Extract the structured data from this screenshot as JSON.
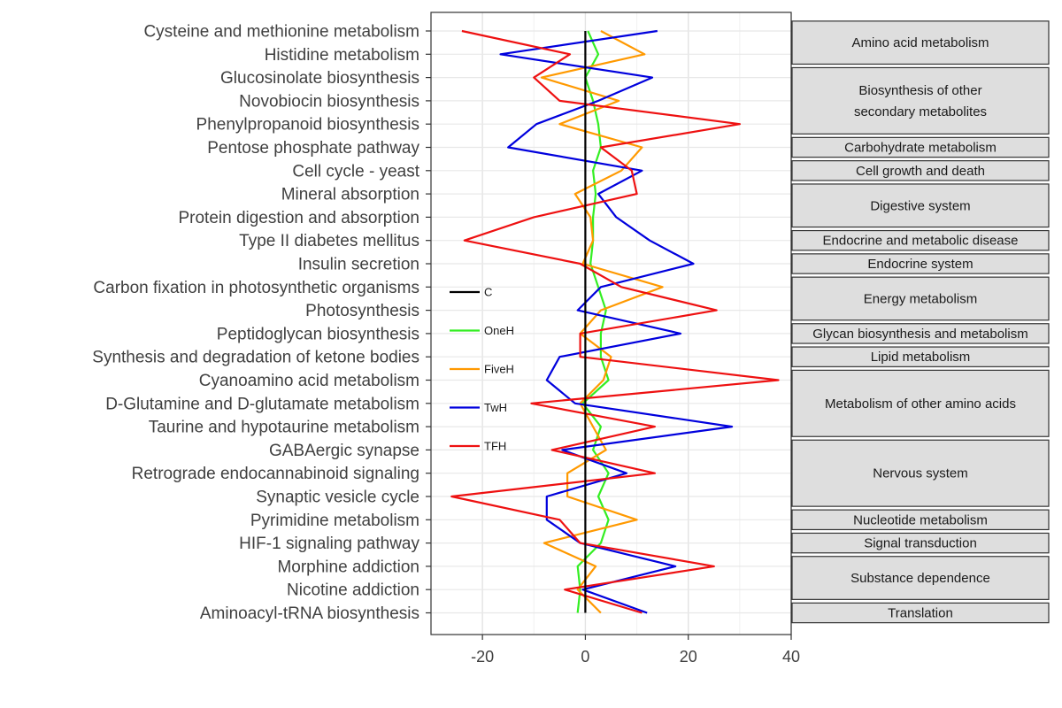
{
  "chart_data": {
    "type": "line",
    "pathways": [
      "Cysteine and methionine metabolism",
      "Histidine metabolism",
      "Glucosinolate biosynthesis",
      "Novobiocin biosynthesis",
      "Phenylpropanoid biosynthesis",
      "Pentose phosphate pathway",
      "Cell cycle - yeast",
      "Mineral absorption",
      "Protein digestion and absorption",
      "Type II diabetes mellitus",
      "Insulin secretion",
      "Carbon fixation in photosynthetic organisms",
      "Photosynthesis",
      "Peptidoglycan biosynthesis",
      "Synthesis and degradation of ketone bodies",
      "Cyanoamino acid metabolism",
      "D-Glutamine and D-glutamate metabolism",
      "Taurine and hypotaurine metabolism",
      "GABAergic synapse",
      "Retrograde endocannabinoid signaling",
      "Synaptic vesicle cycle",
      "Pyrimidine metabolism",
      "HIF-1 signaling pathway",
      "Morphine addiction",
      "Nicotine addiction",
      "Aminoacyl-tRNA biosynthesis"
    ],
    "xlim": [
      -30,
      40
    ],
    "xticks": [
      -20,
      0,
      20,
      40
    ],
    "grid": true,
    "legend_position": "inside-left",
    "series": [
      {
        "name": "C",
        "color": "#000000",
        "values": [
          0,
          0,
          0,
          0,
          0,
          0,
          0,
          0,
          0,
          0,
          0,
          0,
          0,
          0,
          0,
          0,
          0,
          0,
          0,
          0,
          0,
          0,
          0,
          0,
          0,
          0
        ]
      },
      {
        "name": "OneH",
        "color": "#33ee22",
        "values": [
          0.5,
          2.5,
          0,
          1.5,
          2.5,
          3,
          1.5,
          2,
          1.5,
          1.5,
          1,
          2.5,
          4,
          3,
          3,
          4.5,
          -0.5,
          3,
          1.5,
          4.5,
          2.5,
          4.5,
          3,
          -1.5,
          -1,
          -1.5
        ]
      },
      {
        "name": "FiveH",
        "color": "#ff9900",
        "values": [
          3,
          11.5,
          -8.5,
          6.5,
          -5,
          11,
          7,
          -2,
          1,
          1.5,
          -0.5,
          15,
          3,
          -1,
          5,
          3.5,
          -1,
          1.5,
          4,
          -3.5,
          -3.5,
          10,
          -8,
          2,
          -1.5,
          3
        ]
      },
      {
        "name": "TwH",
        "color": "#0000dd",
        "values": [
          14,
          -16.5,
          13,
          2.5,
          -9.5,
          -15,
          11,
          2.5,
          6,
          12.5,
          21,
          3,
          -1.5,
          18.5,
          -5,
          -7.5,
          -2,
          28.5,
          -4.5,
          8,
          -7.5,
          -7.5,
          -1,
          17.5,
          -0.5,
          12
        ]
      },
      {
        "name": "TFH",
        "color": "#ee1111",
        "values": [
          -24,
          -3,
          -10,
          -5,
          30,
          3,
          9,
          10,
          -10,
          -23.5,
          -1,
          7,
          25.5,
          -1,
          -1,
          37.5,
          -10.5,
          13.5,
          -6.5,
          13.5,
          -26,
          -5,
          -1,
          25,
          -4,
          11
        ]
      }
    ],
    "groups": [
      {
        "label": "Amino acid metabolism",
        "start": 0,
        "end": 1
      },
      {
        "label": "Biosynthesis of other secondary metabolites",
        "start": 2,
        "end": 4
      },
      {
        "label": "Carbohydrate metabolism",
        "start": 5,
        "end": 5
      },
      {
        "label": "Cell growth and death",
        "start": 6,
        "end": 6
      },
      {
        "label": "Digestive system",
        "start": 7,
        "end": 8
      },
      {
        "label": "Endocrine and metabolic disease",
        "start": 9,
        "end": 9
      },
      {
        "label": "Endocrine system",
        "start": 10,
        "end": 10
      },
      {
        "label": "Energy metabolism",
        "start": 11,
        "end": 12
      },
      {
        "label": "Glycan biosynthesis and metabolism",
        "start": 13,
        "end": 13
      },
      {
        "label": "Lipid metabolism",
        "start": 14,
        "end": 14
      },
      {
        "label": "Metabolism of other amino acids",
        "start": 15,
        "end": 17
      },
      {
        "label": "Nervous system",
        "start": 18,
        "end": 20
      },
      {
        "label": "Nucleotide metabolism",
        "start": 21,
        "end": 21
      },
      {
        "label": "Signal transduction",
        "start": 22,
        "end": 22
      },
      {
        "label": "Substance dependence",
        "start": 23,
        "end": 24
      },
      {
        "label": "Translation",
        "start": 25,
        "end": 25
      }
    ]
  }
}
